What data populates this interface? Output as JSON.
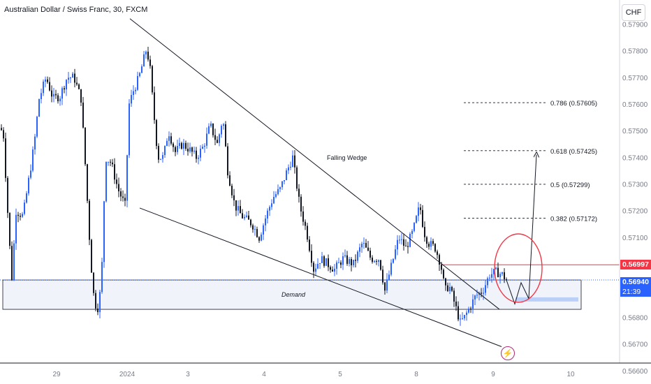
{
  "header": {
    "symbol_line": "Australian Dollar / Swiss Franc, 30, FXCM"
  },
  "currency_button": "CHF",
  "colors": {
    "up": "#2962ff",
    "down": "#131722",
    "current": "#2962ff",
    "resistance": "#f23645",
    "zone": "#f0f3fa",
    "circle": "#f23645",
    "target": "#bbd0f8"
  },
  "price_labels": {
    "resistance": "0.56997",
    "current": "0.56940",
    "countdown": "21:39"
  },
  "icons": {
    "event": "lightning-icon"
  },
  "chart_data": {
    "type": "candlestick",
    "title": "Australian Dollar / Swiss Franc, 30, FXCM",
    "ylim": [
      0.5655,
      0.5799
    ],
    "yticks": [
      "0.57900",
      "0.57800",
      "0.57700",
      "0.57600",
      "0.57500",
      "0.57400",
      "0.57300",
      "0.57200",
      "0.57100",
      "0.56800",
      "0.56700",
      "0.56600"
    ],
    "xticks": [
      "29",
      "2024",
      "3",
      "4",
      "5",
      "8",
      "9",
      "10"
    ],
    "price_path": [
      [
        0,
        0.5751
      ],
      [
        4,
        0.5748
      ],
      [
        12,
        0.571
      ],
      [
        16,
        0.5695
      ],
      [
        22,
        0.572
      ],
      [
        32,
        0.5718
      ],
      [
        38,
        0.5728
      ],
      [
        48,
        0.5745
      ],
      [
        55,
        0.5762
      ],
      [
        65,
        0.577
      ],
      [
        75,
        0.5762
      ],
      [
        85,
        0.5763
      ],
      [
        95,
        0.577
      ],
      [
        105,
        0.577
      ],
      [
        115,
        0.5762
      ],
      [
        120,
        0.5742
      ],
      [
        127,
        0.571
      ],
      [
        132,
        0.569
      ],
      [
        138,
        0.5682
      ],
      [
        144,
        0.5692
      ],
      [
        150,
        0.574
      ],
      [
        158,
        0.5738
      ],
      [
        168,
        0.5728
      ],
      [
        178,
        0.5722
      ],
      [
        184,
        0.576
      ],
      [
        190,
        0.5765
      ],
      [
        198,
        0.577
      ],
      [
        208,
        0.578
      ],
      [
        213,
        0.5776
      ],
      [
        218,
        0.576
      ],
      [
        225,
        0.574
      ],
      [
        233,
        0.574
      ],
      [
        240,
        0.575
      ],
      [
        250,
        0.5742
      ],
      [
        260,
        0.5745
      ],
      [
        270,
        0.5743
      ],
      [
        280,
        0.574
      ],
      [
        290,
        0.5744
      ],
      [
        300,
        0.5752
      ],
      [
        310,
        0.5745
      ],
      [
        318,
        0.5755
      ],
      [
        325,
        0.5735
      ],
      [
        335,
        0.5722
      ],
      [
        345,
        0.5718
      ],
      [
        360,
        0.5715
      ],
      [
        370,
        0.571
      ],
      [
        380,
        0.5718
      ],
      [
        390,
        0.5725
      ],
      [
        400,
        0.5728
      ],
      [
        410,
        0.5735
      ],
      [
        418,
        0.574
      ],
      [
        428,
        0.5722
      ],
      [
        438,
        0.5712
      ],
      [
        448,
        0.5698
      ],
      [
        458,
        0.5702
      ],
      [
        468,
        0.57
      ],
      [
        478,
        0.5698
      ],
      [
        490,
        0.5702
      ],
      [
        505,
        0.57
      ],
      [
        518,
        0.5708
      ],
      [
        530,
        0.5702
      ],
      [
        542,
        0.5702
      ],
      [
        550,
        0.569
      ],
      [
        560,
        0.57
      ],
      [
        570,
        0.571
      ],
      [
        580,
        0.5706
      ],
      [
        590,
        0.5712
      ],
      [
        600,
        0.5722
      ],
      [
        606,
        0.5712
      ],
      [
        612,
        0.5708
      ],
      [
        622,
        0.5706
      ],
      [
        630,
        0.57
      ],
      [
        636,
        0.569
      ],
      [
        642,
        0.5692
      ],
      [
        650,
        0.5685
      ],
      [
        658,
        0.5678
      ],
      [
        664,
        0.568
      ],
      [
        672,
        0.5684
      ],
      [
        680,
        0.5688
      ],
      [
        690,
        0.569
      ],
      [
        700,
        0.5696
      ],
      [
        710,
        0.5697
      ],
      [
        718,
        0.5696
      ],
      [
        724,
        0.5694
      ]
    ],
    "levels": {
      "resistance": 0.56997,
      "current": 0.5694
    },
    "demand_zone": {
      "label": "Demand",
      "from": 0.5683,
      "to": 0.5694
    },
    "pattern": {
      "label": "Falling Wedge",
      "upper": [
        [
          186,
          0.5792
        ],
        [
          715,
          0.5683
        ]
      ],
      "lower": [
        [
          200,
          0.5721
        ],
        [
          718,
          0.5669
        ]
      ]
    },
    "fibonacci": [
      {
        "label": "0.786 (0.57605)",
        "value": 0.57605
      },
      {
        "label": "0.618 (0.57425)",
        "value": 0.57425
      },
      {
        "label": "0.5 (0.57299)",
        "value": 0.57299
      },
      {
        "label": "0.382 (0.57172)",
        "value": 0.57172
      }
    ],
    "projection": [
      [
        725,
        0.5694
      ],
      [
        737,
        0.5685
      ],
      [
        746,
        0.5693
      ],
      [
        757,
        0.5687
      ],
      [
        768,
        0.5741
      ]
    ]
  }
}
